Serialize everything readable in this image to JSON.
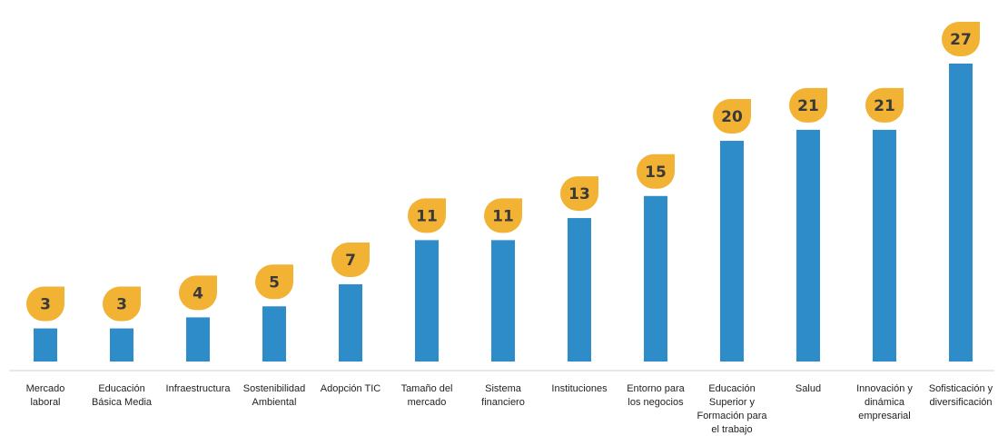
{
  "chart_data": {
    "type": "bar",
    "categories": [
      [
        "Mercado",
        "laboral"
      ],
      [
        "Educación",
        "Básica Media"
      ],
      [
        "Infraestructura"
      ],
      [
        "Sostenibilidad",
        "Ambiental"
      ],
      [
        "Adopción TIC"
      ],
      [
        "Tamaño del",
        "mercado"
      ],
      [
        "Sistema",
        "financiero"
      ],
      [
        "Instituciones"
      ],
      [
        "Entorno para",
        "los negocios"
      ],
      [
        "Educación",
        "Superior y",
        "Formación para",
        "el trabajo"
      ],
      [
        "Salud"
      ],
      [
        "Innovación y",
        "dinámica",
        "empresarial"
      ],
      [
        "Sofisticación y",
        "diversificación"
      ]
    ],
    "values": [
      3,
      3,
      4,
      5,
      7,
      11,
      11,
      13,
      15,
      20,
      21,
      21,
      27
    ],
    "ylim": [
      0,
      27
    ],
    "grid": false,
    "legend": "none",
    "colors": {
      "bar": "#2e8cc9",
      "badge": "#f2b233",
      "badge_text": "#3a3a3a",
      "axis": "#d0d0d0"
    }
  }
}
